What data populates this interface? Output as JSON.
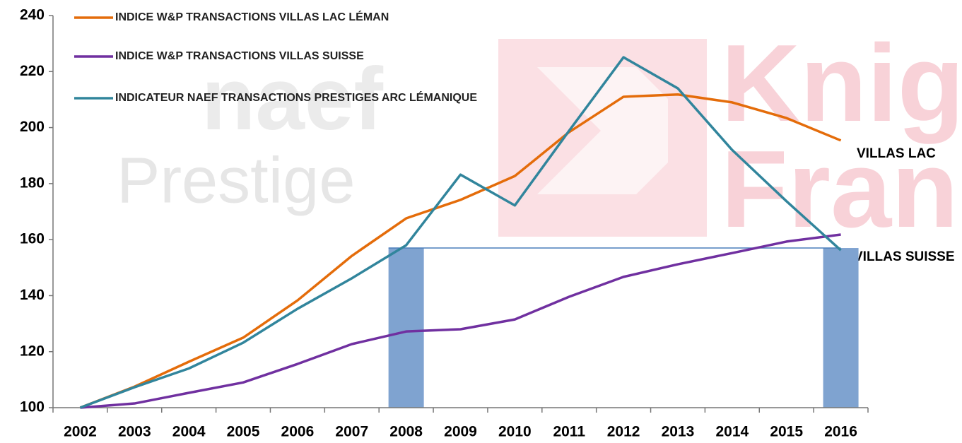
{
  "chart_data": {
    "type": "line",
    "categories": [
      "2002",
      "2003",
      "2004",
      "2005",
      "2006",
      "2007",
      "2008",
      "2009",
      "2010",
      "2011",
      "2012",
      "2013",
      "2014",
      "2015",
      "2016"
    ],
    "series": [
      {
        "name": "INDICE W&P TRANSACTIONS VILLAS LAC LÉMAN",
        "color": "#e46c0a",
        "values": [
          100,
          107.5,
          116.4,
          125,
          138.3,
          154.2,
          167.6,
          174.2,
          182.7,
          198.4,
          211,
          211.8,
          209,
          203.4,
          195.4
        ]
      },
      {
        "name": "INDICE W&P TRANSACTIONS VILLAS SUISSE",
        "color": "#7030a0",
        "values": [
          100,
          101.5,
          105.3,
          109,
          115.6,
          122.7,
          127.2,
          128,
          131.5,
          139.6,
          146.7,
          151.2,
          155.2,
          159.3,
          161.8
        ]
      },
      {
        "name": "INDICATEUR NAEF TRANSACTIONS PRESTIGES ARC LÉMANIQUE",
        "color": "#31859c",
        "values": [
          100,
          107.3,
          114,
          123.2,
          135.3,
          146.2,
          158,
          183.2,
          172.2,
          198.9,
          225.1,
          214,
          192,
          173.7,
          156.2
        ]
      }
    ],
    "bars": {
      "color": "#7fa3d0",
      "values": [
        null,
        null,
        null,
        null,
        null,
        null,
        157,
        null,
        null,
        null,
        null,
        null,
        null,
        null,
        157
      ]
    },
    "annotations": [
      "VILLAS LAC",
      "VILLAS SUISSE"
    ],
    "watermarks": [
      "naef",
      "Prestige",
      "Knight",
      "Frank"
    ],
    "ylim": [
      100,
      240
    ],
    "yticks": [
      100,
      120,
      140,
      160,
      180,
      200,
      220,
      240
    ]
  }
}
